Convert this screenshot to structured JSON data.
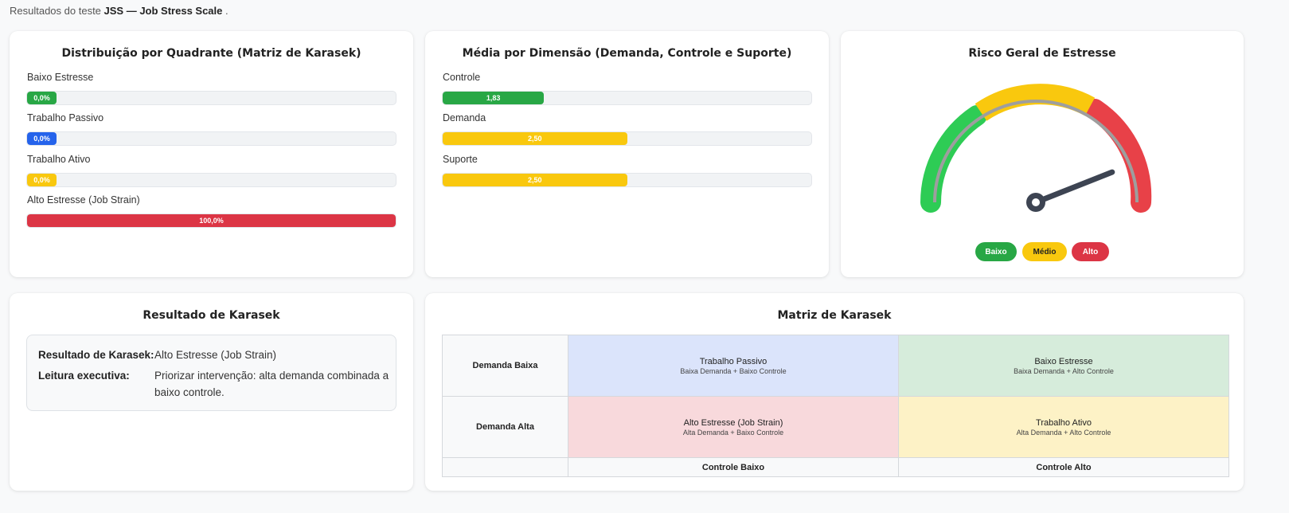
{
  "intro": {
    "prefix": "Resultados do teste",
    "test_name": "JSS — Job Stress Scale",
    "suffix": "."
  },
  "quadrant_card": {
    "title": "Distribuição por Quadrante (Matriz de Karasek)",
    "items": [
      {
        "label": "Baixo Estresse",
        "value_text": "0,0%",
        "percent": 0,
        "color": "#28a745"
      },
      {
        "label": "Trabalho Passivo",
        "value_text": "0,0%",
        "percent": 0,
        "color": "#2563eb"
      },
      {
        "label": "Trabalho Ativo",
        "value_text": "0,0%",
        "percent": 0,
        "color": "#f9c80e"
      },
      {
        "label": "Alto Estresse (Job Strain)",
        "value_text": "100,0%",
        "percent": 100,
        "color": "#dc3545"
      }
    ]
  },
  "dimension_card": {
    "title": "Média por Dimensão (Demanda, Controle e Suporte)",
    "items": [
      {
        "label": "Controle",
        "value_text": "1,83",
        "percent": 27.5,
        "color": "#28a745"
      },
      {
        "label": "Demanda",
        "value_text": "2,50",
        "percent": 50,
        "color": "#f9c80e"
      },
      {
        "label": "Suporte",
        "value_text": "2,50",
        "percent": 50,
        "color": "#f9c80e"
      }
    ]
  },
  "risk_card": {
    "title": "Risco Geral de Estresse",
    "gauge_level": 0.88,
    "legend": [
      {
        "label": "Baixo",
        "color": "#28a745",
        "text_color": "#ffffff"
      },
      {
        "label": "Médio",
        "color": "#f9c80e",
        "text_color": "#222222"
      },
      {
        "label": "Alto",
        "color": "#dc3545",
        "text_color": "#ffffff"
      }
    ]
  },
  "karasek_result": {
    "title": "Resultado de Karasek",
    "result_label": "Resultado de Karasek:",
    "result_value": "Alto Estresse (Job Strain)",
    "reading_label": "Leitura executiva:",
    "reading_value": "Priorizar intervenção: alta demanda combinada a baixo controle."
  },
  "matrix": {
    "title": "Matriz de Karasek",
    "rows": [
      {
        "header": "Demanda Baixa",
        "cells": [
          {
            "title": "Trabalho Passivo",
            "subtitle": "Baixa Demanda + Baixo Controle",
            "color": "#dbe4fb"
          },
          {
            "title": "Baixo Estresse",
            "subtitle": "Baixa Demanda + Alto Controle",
            "color": "#d6ecdb"
          }
        ]
      },
      {
        "header": "Demanda Alta",
        "cells": [
          {
            "title": "Alto Estresse (Job Strain)",
            "subtitle": "Alta Demanda + Baixo Controle",
            "color": "#f8d9dc"
          },
          {
            "title": "Trabalho Ativo",
            "subtitle": "Alta Demanda + Alto Controle",
            "color": "#fdf2c6"
          }
        ]
      }
    ],
    "col_headers": [
      "Controle Baixo",
      "Controle Alto"
    ]
  }
}
